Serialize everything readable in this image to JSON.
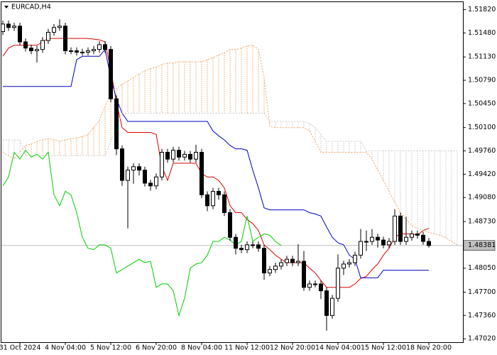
{
  "chart_data": {
    "type": "candlestick",
    "title": "EURCAD,H4",
    "categories": [
      null,
      null,
      null,
      "31 Oct 2024",
      null,
      null,
      null,
      null,
      null,
      null,
      null,
      "4 Nov 04:00",
      null,
      null,
      null,
      null,
      null,
      null,
      null,
      "5 Nov 12:00",
      null,
      null,
      null,
      null,
      null,
      null,
      null,
      "6 Nov 20:00",
      null,
      null,
      null,
      null,
      null,
      null,
      null,
      "8 Nov 04:00",
      null,
      null,
      null,
      null,
      null,
      null,
      null,
      "11 Nov 12:00",
      null,
      null,
      null,
      null,
      null,
      null,
      null,
      "12 Nov 20:00",
      null,
      null,
      null,
      null,
      null,
      null,
      null,
      "14 Nov 04:00",
      null,
      null,
      null,
      null,
      null,
      null,
      null,
      "15 Nov 12:00",
      null,
      null,
      null,
      null,
      null,
      null,
      null,
      "18 Nov 20:00",
      null,
      null,
      null,
      null,
      null
    ],
    "open": [
      1.515,
      1.5161,
      1.5156,
      1.5158,
      1.5135,
      1.5126,
      1.5122,
      1.5124,
      1.5137,
      1.5149,
      1.5156,
      1.5158,
      1.5122,
      1.5122,
      1.512,
      1.512,
      1.5122,
      1.5124,
      1.5131,
      1.5124,
      1.5052,
      1.4979,
      1.4933,
      1.4948,
      1.4953,
      1.4948,
      1.4929,
      1.4925,
      1.4938,
      1.4974,
      1.4964,
      1.4977,
      1.4967,
      1.4971,
      1.4964,
      1.4974,
      1.4912,
      1.4896,
      1.4917,
      1.4912,
      1.4886,
      1.485,
      1.4834,
      1.4832,
      1.4839,
      1.4839,
      1.4834,
      1.4798,
      1.4803,
      1.4808,
      1.4813,
      1.4818,
      1.4813,
      1.4815,
      1.4777,
      1.4782,
      1.4782,
      1.4772,
      1.4736,
      1.4761,
      1.4805,
      1.4811,
      1.4813,
      1.4824,
      1.4844,
      1.4844,
      1.485,
      1.4846,
      1.4839,
      1.4844,
      1.4881,
      1.4844,
      1.485,
      1.4855,
      1.4853,
      1.4844,
      null,
      null,
      null,
      null,
      null
    ],
    "high": [
      1.5166,
      1.5166,
      1.5163,
      1.5163,
      1.514,
      1.5131,
      1.5129,
      1.5142,
      1.5154,
      1.5161,
      1.5168,
      1.5163,
      1.5127,
      1.5127,
      1.5125,
      1.5127,
      1.5129,
      1.5136,
      1.5136,
      1.5129,
      1.5057,
      1.4984,
      1.4953,
      1.4958,
      1.4958,
      1.4953,
      1.4934,
      1.4943,
      1.4979,
      1.4979,
      1.4982,
      1.4982,
      1.4976,
      1.4976,
      1.4985,
      1.4979,
      1.4917,
      1.4922,
      1.4922,
      1.4917,
      1.4891,
      1.4855,
      1.4839,
      1.4844,
      1.4844,
      1.4844,
      1.4839,
      1.4808,
      1.4813,
      1.4818,
      1.4823,
      1.4823,
      1.484,
      1.483,
      1.4787,
      1.4787,
      1.4787,
      1.4777,
      1.4766,
      1.4825,
      1.4816,
      1.4818,
      1.4829,
      1.4862,
      1.486,
      1.4862,
      1.4855,
      1.4851,
      1.4849,
      1.4891,
      1.4886,
      1.488,
      1.486,
      1.486,
      1.4858,
      1.4849,
      null,
      null,
      null,
      null,
      null
    ],
    "low": [
      1.5145,
      1.5151,
      1.5151,
      1.513,
      1.5121,
      1.5117,
      1.5105,
      1.5119,
      1.5132,
      1.5144,
      1.5151,
      1.5117,
      1.5117,
      1.5115,
      1.5115,
      1.5115,
      1.5117,
      1.5119,
      1.5119,
      1.5047,
      1.497,
      1.4925,
      1.4863,
      1.4928,
      1.494,
      1.4924,
      1.4918,
      1.492,
      1.4933,
      1.4959,
      1.4959,
      1.4962,
      1.4962,
      1.4959,
      1.4959,
      1.4907,
      1.4888,
      1.4891,
      1.4905,
      1.4881,
      1.4845,
      1.4825,
      1.4827,
      1.4827,
      1.4834,
      1.4829,
      1.4788,
      1.4793,
      1.4798,
      1.4803,
      1.4808,
      1.4808,
      1.4808,
      1.4772,
      1.4772,
      1.4777,
      1.476,
      1.4714,
      1.4731,
      1.4756,
      1.4795,
      1.4806,
      1.4808,
      1.4819,
      1.483,
      1.4839,
      1.4835,
      1.4834,
      1.4834,
      1.4839,
      1.4839,
      1.4839,
      1.4845,
      1.4848,
      1.4839,
      1.4835,
      null,
      null,
      null,
      null,
      null
    ],
    "close": [
      1.5161,
      1.5156,
      1.5158,
      1.5135,
      1.5126,
      1.5122,
      1.5124,
      1.5137,
      1.5149,
      1.5156,
      1.5158,
      1.5122,
      1.5122,
      1.512,
      1.512,
      1.5122,
      1.5124,
      1.5131,
      1.5124,
      1.5052,
      1.4979,
      1.4933,
      1.4948,
      1.4953,
      1.4948,
      1.4929,
      1.4925,
      1.4938,
      1.4974,
      1.4964,
      1.4977,
      1.4967,
      1.4971,
      1.4964,
      1.4974,
      1.4912,
      1.4896,
      1.4917,
      1.4912,
      1.4886,
      1.485,
      1.4834,
      1.4832,
      1.4839,
      1.4839,
      1.4834,
      1.4798,
      1.4803,
      1.4808,
      1.4813,
      1.4818,
      1.4813,
      1.4815,
      1.4777,
      1.4782,
      1.4782,
      1.4772,
      1.4736,
      1.4761,
      1.4805,
      1.4811,
      1.4813,
      1.4824,
      1.4844,
      1.4844,
      1.485,
      1.4846,
      1.4839,
      1.4844,
      1.4881,
      1.4844,
      1.485,
      1.4855,
      1.4853,
      1.4844,
      1.4838,
      null,
      null,
      null,
      null,
      null
    ],
    "up_color": "#ffffff",
    "down_color": "#000000",
    "wick_color": "#000000",
    "series": [
      {
        "color": "#e00000",
        "values": [
          1.5114,
          1.5126,
          1.513,
          1.513,
          1.513,
          1.513,
          1.513,
          1.5135,
          1.514,
          1.514,
          1.514,
          1.514,
          1.514,
          1.514,
          1.514,
          1.514,
          1.5139,
          1.5138,
          1.5135,
          1.5094,
          1.5047,
          1.501,
          1.5003,
          1.5003,
          1.5003,
          1.5003,
          1.5003,
          1.5,
          1.4953,
          1.4933,
          1.4958,
          1.4958,
          1.4958,
          1.4958,
          1.4958,
          1.4943,
          1.4938,
          1.4938,
          1.4933,
          1.4922,
          1.4896,
          1.4886,
          1.4886,
          1.4876,
          1.487,
          1.486,
          1.4839,
          1.4832,
          1.4824,
          1.4818,
          1.4813,
          1.4813,
          1.4813,
          1.4813,
          1.4805,
          1.4798,
          1.4787,
          1.4777,
          1.4777,
          1.4777,
          1.4777,
          1.4777,
          1.4782,
          1.479,
          1.4793,
          1.4803,
          1.4811,
          1.4824,
          1.4834,
          1.485,
          1.4855,
          1.4855,
          1.4855,
          1.4853,
          1.486,
          1.4863,
          null,
          null,
          null,
          null,
          null
        ]
      },
      {
        "color": "#0000c8",
        "values": [
          1.507,
          1.507,
          1.507,
          1.507,
          1.507,
          1.507,
          1.507,
          1.507,
          1.507,
          1.507,
          1.507,
          1.507,
          1.507,
          1.5109,
          1.5114,
          1.5114,
          1.5114,
          1.5114,
          1.5124,
          1.5083,
          1.5052,
          1.5031,
          1.5019,
          1.5019,
          1.5019,
          1.5019,
          1.5019,
          1.5019,
          1.5019,
          1.5019,
          1.5019,
          1.5019,
          1.5019,
          1.5019,
          1.5019,
          1.5019,
          1.5019,
          1.5005,
          1.4998,
          1.4992,
          1.4984,
          1.4979,
          1.4979,
          1.4977,
          1.4948,
          1.4922,
          1.4893,
          1.489,
          1.489,
          1.489,
          1.489,
          1.489,
          1.489,
          1.489,
          1.4886,
          1.4884,
          1.4881,
          1.4865,
          1.485,
          1.4842,
          1.4839,
          1.4824,
          1.4818,
          1.4791,
          1.4791,
          1.4791,
          1.4791,
          1.4802,
          1.4802,
          1.4802,
          1.4802,
          1.4802,
          1.4802,
          1.4802,
          1.4802,
          1.4802,
          null,
          null,
          null,
          null,
          null
        ]
      },
      {
        "color": "#00d000",
        "values": [
          1.4925,
          1.4938,
          1.4974,
          1.4964,
          1.4977,
          1.4967,
          1.4971,
          1.4964,
          1.4974,
          1.4912,
          1.4896,
          1.4917,
          1.4912,
          1.4886,
          1.485,
          1.4834,
          1.4832,
          1.4839,
          1.4839,
          1.4834,
          1.4798,
          1.4803,
          1.4808,
          1.4813,
          1.4818,
          1.4813,
          1.4815,
          1.4777,
          1.4782,
          1.4782,
          1.4772,
          1.4736,
          1.4761,
          1.4805,
          1.4811,
          1.4813,
          1.4824,
          1.4844,
          1.4844,
          1.485,
          1.4846,
          1.4839,
          1.4844,
          1.4881,
          1.4844,
          1.485,
          1.4855,
          1.4853,
          1.4844,
          1.4838,
          null,
          null,
          null,
          null,
          null,
          null,
          null,
          null,
          null,
          null,
          null,
          null,
          null,
          null,
          null,
          null,
          null,
          null,
          null,
          null,
          null,
          null,
          null,
          null,
          null,
          null,
          null,
          null,
          null,
          null,
          null
        ]
      },
      {
        "color": "#f4a460",
        "style": "dotted",
        "values": [
          1.4974,
          1.4969,
          1.4964,
          1.4974,
          1.4984,
          1.4986,
          1.499,
          1.4992,
          1.4994,
          1.4992,
          1.499,
          1.4992,
          1.4994,
          1.4995,
          1.4997,
          1.5,
          1.501,
          1.5021,
          1.5041,
          1.5062,
          1.5067,
          1.5073,
          1.5078,
          1.5083,
          1.5088,
          1.5093,
          1.5096,
          1.5098,
          1.5102,
          1.5104,
          1.5104,
          1.5106,
          1.5106,
          1.5106,
          1.5106,
          1.5106,
          1.5109,
          1.5112,
          1.5116,
          1.5119,
          1.5124,
          1.5124,
          1.5126,
          1.5129,
          1.513,
          1.5124,
          1.5083,
          1.5012,
          1.501,
          1.501,
          1.501,
          1.501,
          1.501,
          1.501,
          1.5005,
          1.499,
          1.4974,
          1.4974,
          1.4974,
          1.4974,
          1.4974,
          1.4974,
          1.4974,
          1.4974,
          1.4974,
          1.4964,
          1.4948,
          1.4933,
          1.4917,
          1.4901,
          1.4886,
          1.4876,
          1.4867,
          1.4863,
          1.486,
          1.4857,
          1.4855,
          1.4853,
          1.4849,
          1.4844,
          1.4839
        ]
      },
      {
        "color": "#c8c8c8",
        "style": "dotted",
        "values": [
          1.4992,
          1.4992,
          1.4992,
          1.4992,
          1.4969,
          1.4969,
          1.4969,
          1.4969,
          1.4969,
          1.4969,
          1.4969,
          1.4969,
          1.4969,
          1.4969,
          1.4969,
          1.4969,
          1.4969,
          1.4969,
          1.4969,
          1.499,
          1.501,
          1.5031,
          1.5031,
          1.5031,
          1.5031,
          1.5031,
          1.5031,
          1.5031,
          1.5031,
          1.5031,
          1.5031,
          1.5031,
          1.5031,
          1.5031,
          1.5031,
          1.5031,
          1.5031,
          1.5031,
          1.5031,
          1.5031,
          1.5031,
          1.5031,
          1.5031,
          1.5031,
          1.5031,
          1.5031,
          1.5031,
          1.5019,
          1.5019,
          1.5019,
          1.5019,
          1.5019,
          1.5019,
          1.5019,
          1.5016,
          1.501,
          1.5,
          1.499,
          1.499,
          1.499,
          1.499,
          1.499,
          1.499,
          1.499,
          1.4976,
          1.4976,
          1.4976,
          1.4976,
          1.4976,
          1.4976,
          1.4976,
          1.4976,
          1.4976,
          1.4976,
          1.4976,
          1.4976,
          1.4976,
          1.4976,
          1.4976,
          1.4976,
          1.4976
        ]
      }
    ],
    "cloud": true,
    "last_price": 1.48381,
    "last_price_color": "#c0c0c0",
    "ylim": [
      1.4697,
      1.5194
    ],
    "yticks": [
      {
        "value": 1.5182,
        "label": "1.51820"
      },
      {
        "value": 1.5148,
        "label": "1.51480"
      },
      {
        "value": 1.5113,
        "label": "1.51130"
      },
      {
        "value": 1.5079,
        "label": "1.50790"
      },
      {
        "value": 1.5045,
        "label": "1.50450"
      },
      {
        "value": 1.501,
        "label": "1.50100"
      },
      {
        "value": 1.4976,
        "label": "1.49760"
      },
      {
        "value": 1.4942,
        "label": "1.49420"
      },
      {
        "value": 1.4908,
        "label": "1.49080"
      },
      {
        "value": 1.4873,
        "label": "1.48730"
      },
      {
        "value": 1.4805,
        "label": "1.48050"
      },
      {
        "value": 1.477,
        "label": "1.47700"
      },
      {
        "value": 1.4736,
        "label": "1.47360"
      },
      {
        "value": 1.4702,
        "label": "1.47020"
      }
    ]
  }
}
